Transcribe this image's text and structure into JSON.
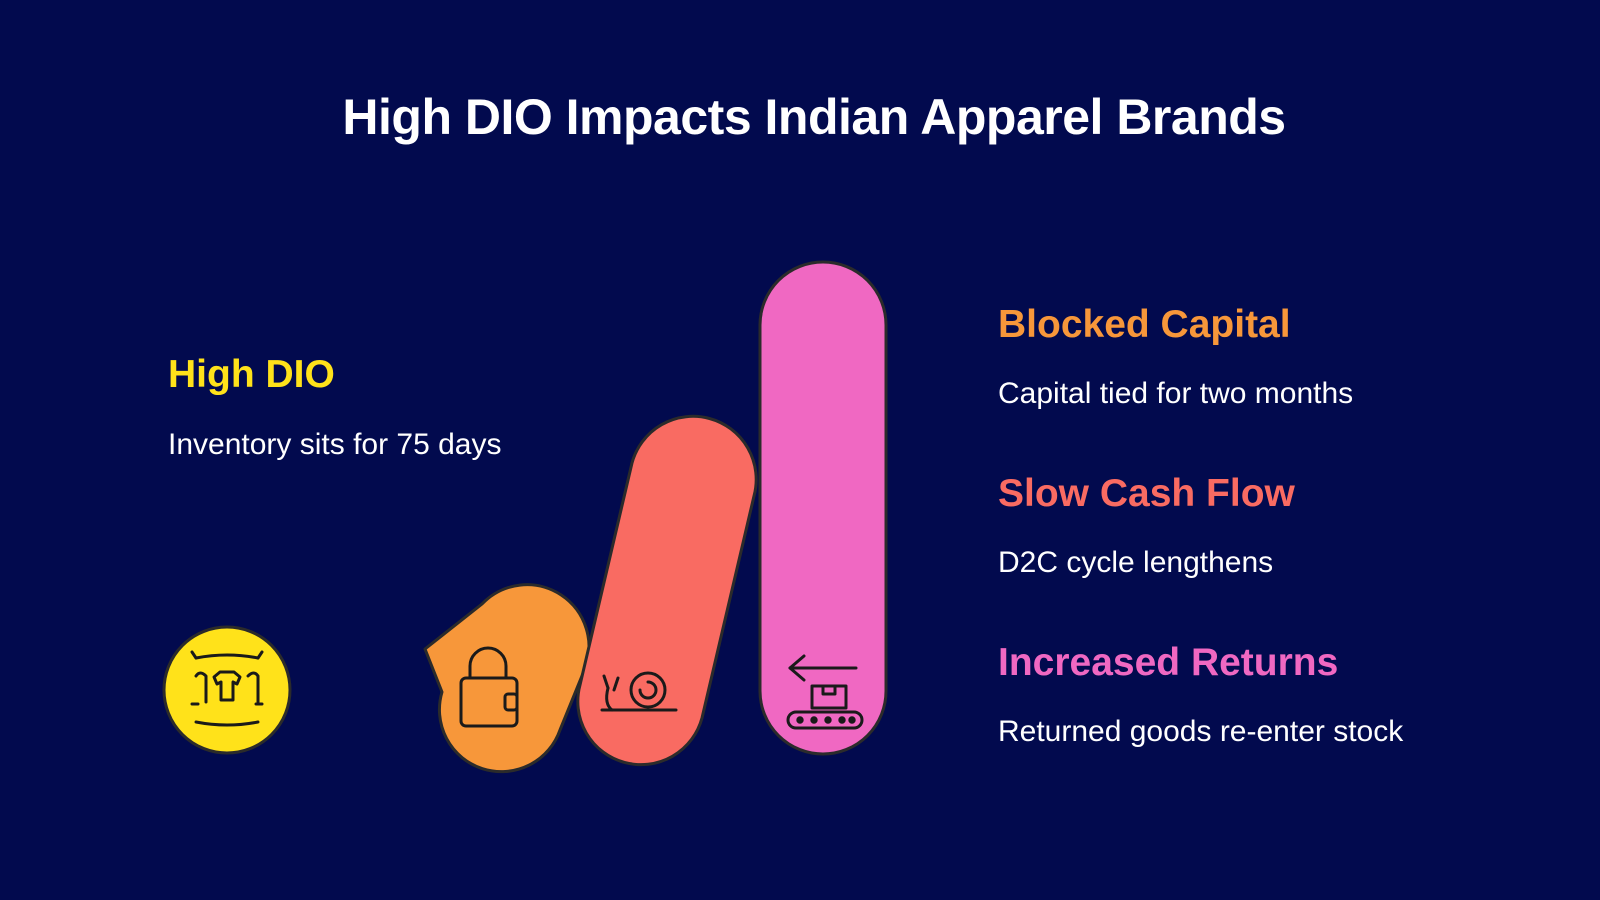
{
  "title": "High DIO Impacts Indian Apparel Brands",
  "colors": {
    "background": "#020a4e",
    "yellow": "#ffe21a",
    "orange": "#f7973a",
    "coral": "#f96b62",
    "pink": "#f068c2"
  },
  "cause": {
    "title": "High DIO",
    "description": "Inventory sits for 75 days",
    "icon": "clothing-rack-icon"
  },
  "impacts": [
    {
      "title": "Blocked Capital",
      "description": "Capital tied for two months",
      "color": "#f7973a",
      "icon": "wallet-lock-icon"
    },
    {
      "title": "Slow Cash Flow",
      "description": "D2C cycle lengthens",
      "color": "#f96b62",
      "icon": "snail-icon"
    },
    {
      "title": "Increased Returns",
      "description": "Returned goods re-enter stock",
      "color": "#f068c2",
      "icon": "conveyor-return-icon"
    }
  ]
}
